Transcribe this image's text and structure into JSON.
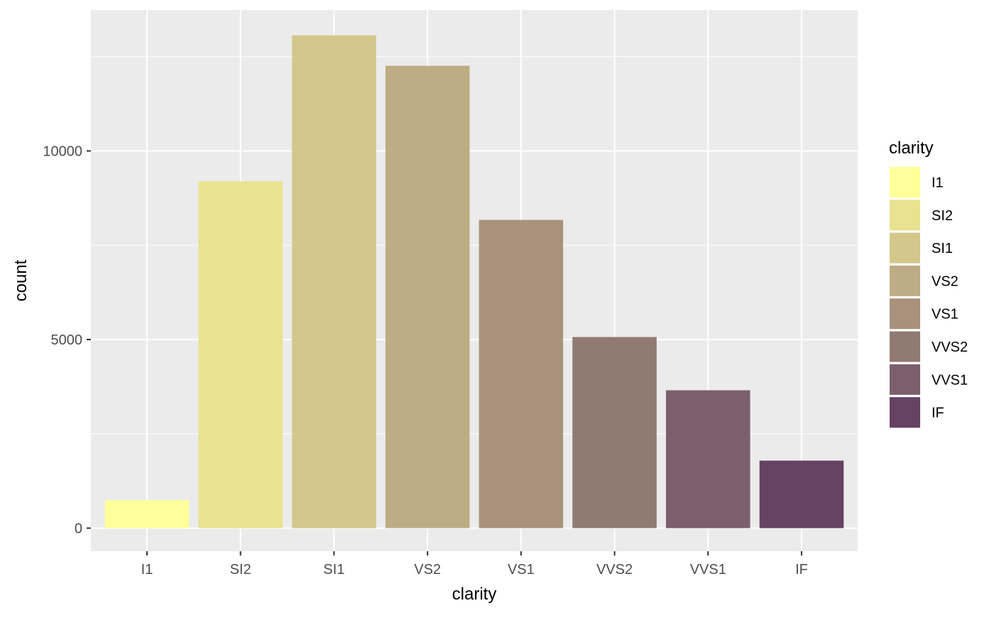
{
  "chart_data": {
    "type": "bar",
    "categories": [
      "I1",
      "SI2",
      "SI1",
      "VS2",
      "VS1",
      "VVS2",
      "VVS1",
      "IF"
    ],
    "values": [
      741,
      9194,
      13065,
      12258,
      8171,
      5066,
      3655,
      1790
    ],
    "colors": [
      "#FFFF99",
      "#E8E38E",
      "#D3C78A",
      "#BEAC84",
      "#A8927B",
      "#917A72",
      "#7C5F6C",
      "#664263"
    ],
    "xlabel": "clarity",
    "ylabel": "count",
    "ylim": [
      -741,
      13800
    ],
    "yticks": [
      0,
      5000,
      10000
    ],
    "yminor": [
      2500,
      7500,
      12500
    ],
    "grid": true,
    "panel_background": "#EBEBEB",
    "legend": {
      "title": "clarity",
      "placement": "right",
      "items": [
        "I1",
        "SI2",
        "SI1",
        "VS2",
        "VS1",
        "VVS2",
        "VVS1",
        "IF"
      ]
    }
  }
}
